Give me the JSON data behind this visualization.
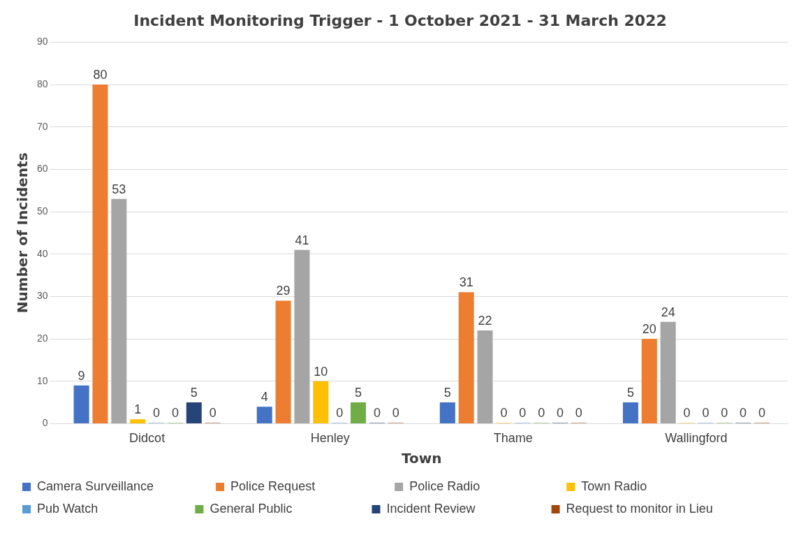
{
  "chart_data": {
    "type": "bar",
    "title": "Incident Monitoring Trigger - 1 October 2021 - 31 March 2022",
    "xlabel": "Town",
    "ylabel": "Number of Incidents",
    "categories": [
      "Didcot",
      "Henley",
      "Thame",
      "Wallingford"
    ],
    "series": [
      {
        "name": "Camera Surveillance",
        "color": "#4472c4",
        "values": [
          9,
          4,
          5,
          5
        ]
      },
      {
        "name": "Police Request",
        "color": "#ed7d31",
        "values": [
          80,
          29,
          31,
          20
        ]
      },
      {
        "name": "Police Radio",
        "color": "#a5a5a5",
        "values": [
          53,
          41,
          22,
          24
        ]
      },
      {
        "name": "Town Radio",
        "color": "#ffc000",
        "values": [
          1,
          10,
          0,
          0
        ]
      },
      {
        "name": "Pub Watch",
        "color": "#5b9bd5",
        "values": [
          0,
          0,
          0,
          0
        ]
      },
      {
        "name": "General Public",
        "color": "#70ad47",
        "values": [
          0,
          5,
          0,
          0
        ]
      },
      {
        "name": "Incident Review",
        "color": "#264478",
        "values": [
          5,
          0,
          0,
          0
        ]
      },
      {
        "name": "Request to monitor in Lieu",
        "color": "#9e480e",
        "values": [
          0,
          0,
          0,
          0
        ]
      }
    ],
    "ylim": [
      0,
      90
    ],
    "yticks": [
      0,
      10,
      20,
      30,
      40,
      50,
      60,
      70,
      80,
      90
    ],
    "grid": "y",
    "legend": "bottom",
    "data_labels": true
  }
}
